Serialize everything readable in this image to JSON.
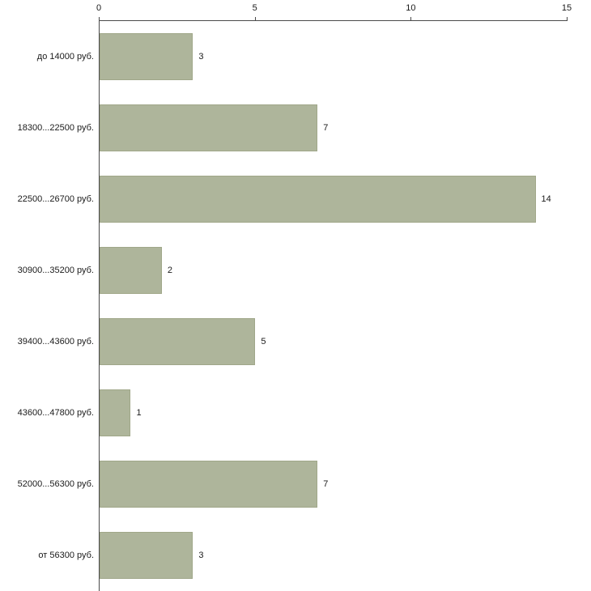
{
  "chart_data": {
    "type": "bar",
    "orientation": "horizontal",
    "title": "",
    "xlabel": "",
    "ylabel": "",
    "categories": [
      "до 14000 руб.",
      "18300...22500 руб.",
      "22500...26700 руб.",
      "30900...35200 руб.",
      "39400...43600 руб.",
      "43600...47800 руб.",
      "52000...56300 руб.",
      "от 56300 руб."
    ],
    "values": [
      3,
      7,
      14,
      2,
      5,
      1,
      7,
      3
    ],
    "xlim": [
      0,
      15
    ],
    "x_ticks": [
      0,
      5,
      10,
      15
    ],
    "axis_position": "top",
    "grid": false,
    "legend": false,
    "bar_color": "#aeb59b",
    "bar_border_color": "#a0a789",
    "axis_color": "#4a4a4a"
  }
}
